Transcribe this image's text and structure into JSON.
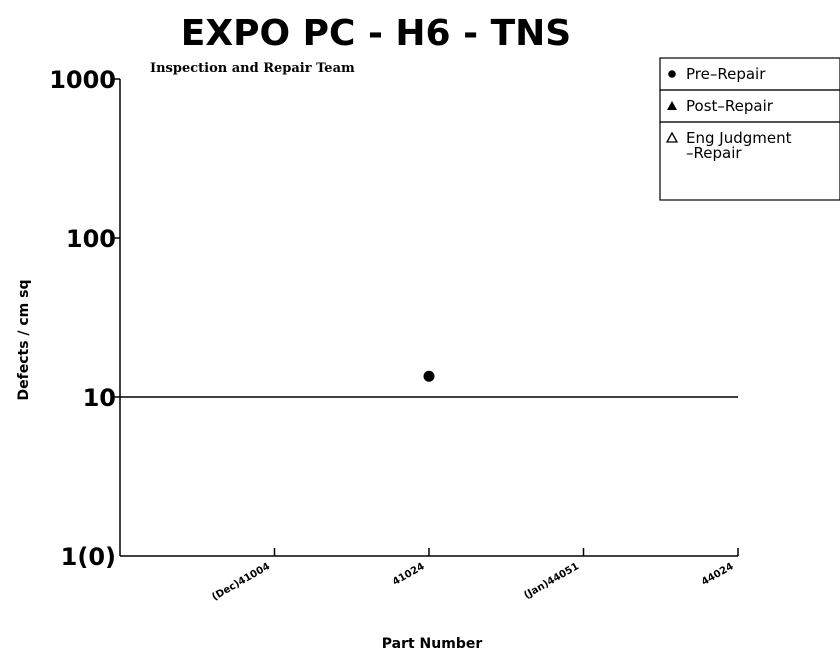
{
  "chart_data": {
    "type": "scatter",
    "title": "EXPO PC - H6 - TNS",
    "subtitle": "Inspection and Repair Team",
    "xlabel": "Part Number",
    "ylabel": "Defects / cm sq",
    "y_scale": "log",
    "ylim": [
      1,
      1000
    ],
    "y_ticks": [
      "1000",
      "100",
      "10",
      "1(0)"
    ],
    "categories": [
      "(Dec)41004",
      "41024",
      "(Jan)44051",
      "44024"
    ],
    "reference_line": 10,
    "series": [
      {
        "name": "Pre-Repair",
        "marker": "filled-circle",
        "points": [
          {
            "x": "41024",
            "y": 13.5
          }
        ]
      },
      {
        "name": "Post-Repair",
        "marker": "filled-triangle",
        "points": []
      },
      {
        "name": "Eng Judgment -Repair",
        "marker": "open-triangle",
        "points": []
      }
    ],
    "legend": {
      "position": "top-right",
      "items": [
        {
          "marker": "filled-circle",
          "label": "Pre–Repair"
        },
        {
          "marker": "filled-triangle",
          "label": "Post–Repair"
        },
        {
          "marker": "open-triangle",
          "label_lines": [
            "Eng Judgment",
            "–Repair"
          ]
        }
      ]
    },
    "grid": false,
    "colors": {
      "ink": "#000000",
      "background": "#ffffff"
    }
  }
}
